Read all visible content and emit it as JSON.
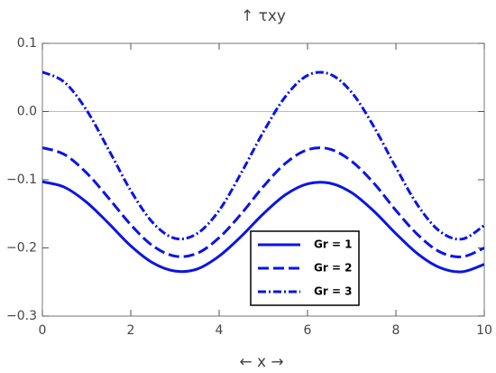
{
  "chart_data": {
    "type": "line",
    "title": "↑ τxy",
    "x_label": "← x →",
    "x": [
      0,
      0.5,
      1,
      1.5,
      2,
      2.5,
      3,
      3.5,
      4,
      4.5,
      5,
      5.5,
      6,
      6.5,
      7,
      7.5,
      8,
      8.5,
      9,
      9.5,
      10
    ],
    "series": [
      {
        "name": "Gr = 1",
        "color": "#0a14e6",
        "dash": "solid",
        "values": [
          -0.103,
          -0.111,
          -0.133,
          -0.164,
          -0.197,
          -0.222,
          -0.234,
          -0.231,
          -0.212,
          -0.183,
          -0.15,
          -0.122,
          -0.106,
          -0.105,
          -0.119,
          -0.146,
          -0.179,
          -0.209,
          -0.229,
          -0.235,
          -0.224
        ]
      },
      {
        "name": "Gr = 2",
        "color": "#0a14e6",
        "dash": "dashed",
        "values": [
          -0.053,
          -0.063,
          -0.09,
          -0.127,
          -0.166,
          -0.197,
          -0.212,
          -0.208,
          -0.185,
          -0.15,
          -0.11,
          -0.076,
          -0.056,
          -0.055,
          -0.073,
          -0.105,
          -0.145,
          -0.181,
          -0.206,
          -0.213,
          -0.2
        ]
      },
      {
        "name": "Gr = 3",
        "color": "#0a14e6",
        "dash": "dashdot",
        "values": [
          0.058,
          0.043,
          0.002,
          -0.056,
          -0.116,
          -0.163,
          -0.186,
          -0.179,
          -0.145,
          -0.09,
          -0.03,
          0.022,
          0.053,
          0.055,
          0.028,
          -0.022,
          -0.082,
          -0.138,
          -0.176,
          -0.187,
          -0.167
        ]
      }
    ],
    "xlim": [
      0,
      10
    ],
    "xticks": [
      0,
      2,
      4,
      6,
      8,
      10
    ],
    "ylim": [
      -0.3,
      0.1
    ],
    "yticks": [
      {
        "value": -0.3,
        "label": "−0.3"
      },
      {
        "value": -0.2,
        "label": "−0.2"
      },
      {
        "value": -0.1,
        "label": "−0.1"
      },
      {
        "value": 0,
        "label": "0.0"
      },
      {
        "value": 0.1,
        "label": "0.1"
      }
    ],
    "legend": "lower-right"
  }
}
